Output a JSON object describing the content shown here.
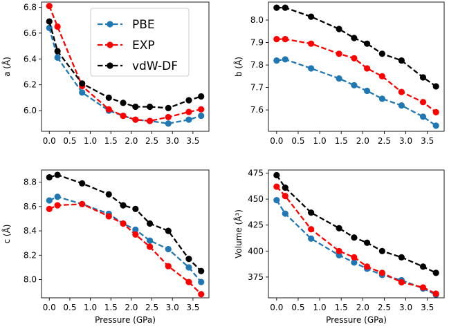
{
  "chart_data": [
    {
      "type": "line",
      "id": "a",
      "xlabel": "",
      "ylabel": "a (Å)",
      "xlim": [
        -0.19,
        3.89
      ],
      "ylim": [
        5.84,
        6.84
      ],
      "xticks": [
        0.0,
        0.5,
        1.0,
        1.5,
        2.0,
        2.5,
        3.0,
        3.5
      ],
      "xtick_labels": [
        "0.0",
        "0.5",
        "1.0",
        "1.5",
        "2.0",
        "2.5",
        "3.0",
        "3.5"
      ],
      "yticks": [
        6.0,
        6.2,
        6.4,
        6.6,
        6.8
      ],
      "ytick_labels": [
        "6.0",
        "6.2",
        "6.4",
        "6.6",
        "6.8"
      ],
      "legend": {
        "position": "top-center",
        "entries": [
          "PBE",
          "EXP",
          "vdW-DF"
        ]
      },
      "series": [
        {
          "name": "PBE",
          "color": "#1f77b4",
          "x": [
            0.0,
            0.2,
            0.8,
            1.45,
            1.8,
            2.1,
            2.45,
            2.9,
            3.4,
            3.7
          ],
          "y": [
            6.64,
            6.41,
            6.14,
            6.0,
            5.96,
            5.93,
            5.92,
            5.9,
            5.93,
            5.96
          ]
        },
        {
          "name": "EXP",
          "color": "#ff0000",
          "x": [
            0.0,
            0.2,
            0.8,
            1.45,
            1.8,
            2.1,
            2.45,
            2.9,
            3.4,
            3.7
          ],
          "y": [
            6.81,
            6.65,
            6.19,
            6.01,
            5.96,
            5.93,
            5.92,
            5.95,
            5.99,
            6.01
          ]
        },
        {
          "name": "vdW-DF",
          "color": "#000000",
          "x": [
            0.0,
            0.2,
            0.8,
            1.45,
            1.8,
            2.1,
            2.45,
            2.9,
            3.4,
            3.7
          ],
          "y": [
            6.69,
            6.46,
            6.21,
            6.1,
            6.06,
            6.03,
            6.03,
            6.02,
            6.08,
            6.11
          ]
        }
      ]
    },
    {
      "type": "line",
      "id": "b",
      "xlabel": "",
      "ylabel": "b (Å)",
      "xlim": [
        -0.19,
        3.89
      ],
      "ylim": [
        7.505,
        8.08
      ],
      "xticks": [
        0.0,
        0.5,
        1.0,
        1.5,
        2.0,
        2.5,
        3.0,
        3.5
      ],
      "xtick_labels": [
        "0.0",
        "0.5",
        "1.0",
        "1.5",
        "2.0",
        "2.5",
        "3.0",
        "3.5"
      ],
      "yticks": [
        7.6,
        7.7,
        7.8,
        7.9,
        8.0
      ],
      "ytick_labels": [
        "7.6",
        "7.7",
        "7.8",
        "7.9",
        "8.0"
      ],
      "series": [
        {
          "name": "PBE",
          "color": "#1f77b4",
          "x": [
            0.0,
            0.2,
            0.8,
            1.45,
            1.8,
            2.1,
            2.45,
            2.9,
            3.4,
            3.7
          ],
          "y": [
            7.82,
            7.825,
            7.785,
            7.74,
            7.71,
            7.685,
            7.65,
            7.62,
            7.57,
            7.53
          ]
        },
        {
          "name": "EXP",
          "color": "#ff0000",
          "x": [
            0.0,
            0.2,
            0.8,
            1.45,
            1.8,
            2.1,
            2.45,
            2.9,
            3.4,
            3.7
          ],
          "y": [
            7.915,
            7.915,
            7.895,
            7.85,
            7.83,
            7.785,
            7.75,
            7.68,
            7.635,
            7.59
          ]
        },
        {
          "name": "vdW-DF",
          "color": "#000000",
          "x": [
            0.0,
            0.2,
            0.8,
            1.45,
            1.8,
            2.1,
            2.45,
            2.9,
            3.4,
            3.7
          ],
          "y": [
            8.055,
            8.055,
            8.015,
            7.96,
            7.92,
            7.895,
            7.85,
            7.82,
            7.745,
            7.705
          ]
        }
      ]
    },
    {
      "type": "line",
      "id": "c",
      "xlabel": "Pressure (GPa)",
      "ylabel": "c (Å)",
      "xlim": [
        -0.19,
        3.89
      ],
      "ylim": [
        7.85,
        8.9
      ],
      "xticks": [
        0.0,
        0.5,
        1.0,
        1.5,
        2.0,
        2.5,
        3.0,
        3.5
      ],
      "xtick_labels": [
        "0.0",
        "0.5",
        "1.0",
        "1.5",
        "2.0",
        "2.5",
        "3.0",
        "3.5"
      ],
      "yticks": [
        8.0,
        8.2,
        8.4,
        8.6,
        8.8
      ],
      "ytick_labels": [
        "8.0",
        "8.2",
        "8.4",
        "8.6",
        "8.8"
      ],
      "series": [
        {
          "name": "PBE",
          "color": "#1f77b4",
          "x": [
            0.0,
            0.2,
            0.8,
            1.45,
            1.8,
            2.1,
            2.45,
            2.9,
            3.4,
            3.7
          ],
          "y": [
            8.65,
            8.68,
            8.62,
            8.54,
            8.46,
            8.41,
            8.32,
            8.25,
            8.1,
            7.98
          ]
        },
        {
          "name": "EXP",
          "color": "#ff0000",
          "x": [
            0.0,
            0.2,
            0.8,
            1.45,
            1.8,
            2.1,
            2.45,
            2.9,
            3.4,
            3.7
          ],
          "y": [
            8.58,
            8.61,
            8.62,
            8.52,
            8.46,
            8.37,
            8.27,
            8.11,
            7.98,
            7.88
          ]
        },
        {
          "name": "vdW-DF",
          "color": "#000000",
          "x": [
            0.0,
            0.2,
            0.8,
            1.45,
            1.8,
            2.1,
            2.45,
            2.9,
            3.4,
            3.7
          ],
          "y": [
            8.84,
            8.86,
            8.79,
            8.7,
            8.61,
            8.58,
            8.46,
            8.4,
            8.17,
            8.07
          ]
        }
      ]
    },
    {
      "type": "line",
      "id": "volume",
      "xlabel": "Pressure (GPa)",
      "ylabel": "Volume (Å³)",
      "xlim": [
        -0.19,
        3.89
      ],
      "ylim": [
        355,
        478
      ],
      "xticks": [
        0.0,
        0.5,
        1.0,
        1.5,
        2.0,
        2.5,
        3.0,
        3.5
      ],
      "xtick_labels": [
        "0.0",
        "0.5",
        "1.0",
        "1.5",
        "2.0",
        "2.5",
        "3.0",
        "3.5"
      ],
      "yticks": [
        375,
        400,
        425,
        450,
        475
      ],
      "ytick_labels": [
        "375",
        "400",
        "425",
        "450",
        "475"
      ],
      "series": [
        {
          "name": "PBE",
          "color": "#1f77b4",
          "x": [
            0.0,
            0.2,
            0.8,
            1.45,
            1.8,
            2.1,
            2.45,
            2.9,
            3.4,
            3.7
          ],
          "y": [
            449,
            436,
            412,
            396,
            389,
            383,
            377,
            372,
            364,
            358
          ]
        },
        {
          "name": "EXP",
          "color": "#ff0000",
          "x": [
            0.0,
            0.2,
            0.8,
            1.45,
            1.8,
            2.1,
            2.45,
            2.9,
            3.4,
            3.7
          ],
          "y": [
            462,
            453,
            421,
            400,
            394,
            385,
            379,
            370,
            365,
            359
          ]
        },
        {
          "name": "vdW-DF",
          "color": "#000000",
          "x": [
            0.0,
            0.2,
            0.8,
            1.45,
            1.8,
            2.1,
            2.45,
            2.9,
            3.4,
            3.7
          ],
          "y": [
            473,
            461,
            437,
            422,
            413,
            408,
            400,
            394,
            385,
            379
          ]
        }
      ]
    }
  ]
}
